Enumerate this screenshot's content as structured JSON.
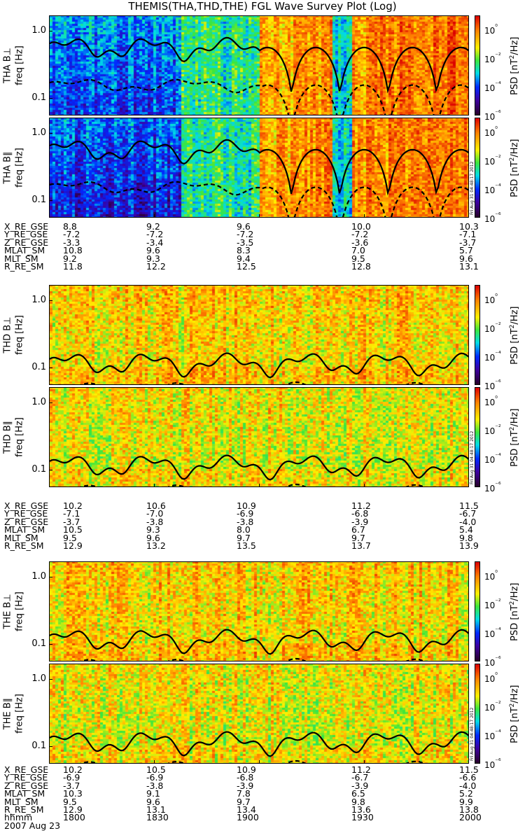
{
  "title": "THEMIS(THA,THD,THE) FGL Wave Survey Plot (Log)",
  "colorbar": {
    "label": "PSD [nT²/Hz]",
    "ticks": [
      "10⁰",
      "10⁻²",
      "10⁻⁴",
      "10⁻⁶"
    ]
  },
  "freq_ticks": [
    "1.0",
    "0.1"
  ],
  "stamp": "Fri Aug 31 04:48:17 2012",
  "panels": [
    {
      "id": "tha-bperp",
      "label": "THA B⊥",
      "freq_label": "freq [Hz]",
      "profile": "quiet-then-active",
      "curves": [
        "solid",
        "dashed"
      ]
    },
    {
      "id": "tha-bpar",
      "label": "THA B∥",
      "freq_label": "freq [Hz]",
      "profile": "quiet-then-active",
      "curves": [
        "solid",
        "dashed"
      ]
    },
    {
      "id": "thd-bperp",
      "label": "THD B⊥",
      "freq_label": "freq [Hz]",
      "profile": "active",
      "curves": [
        "solid",
        "dashed"
      ]
    },
    {
      "id": "thd-bpar",
      "label": "THD B∥",
      "freq_label": "freq [Hz]",
      "profile": "active",
      "curves": [
        "solid",
        "dashed"
      ]
    },
    {
      "id": "the-bperp",
      "label": "THE B⊥",
      "freq_label": "freq [Hz]",
      "profile": "active",
      "curves": [
        "solid",
        "dashed"
      ]
    },
    {
      "id": "the-bpar",
      "label": "THE B∥",
      "freq_label": "freq [Hz]",
      "profile": "active",
      "curves": [
        "solid",
        "dashed"
      ]
    }
  ],
  "ephemeris": [
    {
      "probe": "THA",
      "rows": [
        {
          "name": "X_RE_GSE",
          "values": [
            "8.8",
            "9.2",
            "9.6",
            "10.0",
            "10.3"
          ]
        },
        {
          "name": "Y_RE_GSE",
          "values": [
            "-7.2",
            "-7.2",
            "-7.2",
            "-7.2",
            "-7.1"
          ]
        },
        {
          "name": "Z_RE_GSE",
          "values": [
            "-3.3",
            "-3.4",
            "-3.5",
            "-3.6",
            "-3.7"
          ]
        },
        {
          "name": "MLAT_SM",
          "values": [
            "10.8",
            "9.6",
            "8.3",
            "7.0",
            "5.7"
          ]
        },
        {
          "name": "MLT_SM",
          "values": [
            "9.2",
            "9.3",
            "9.4",
            "9.5",
            "9.6"
          ]
        },
        {
          "name": "R_RE_SM",
          "values": [
            "11.8",
            "12.2",
            "12.5",
            "12.8",
            "13.1"
          ]
        }
      ]
    },
    {
      "probe": "THD",
      "rows": [
        {
          "name": "X_RE_GSE",
          "values": [
            "10.2",
            "10.6",
            "10.9",
            "11.2",
            "11.5"
          ]
        },
        {
          "name": "Y_RE_GSE",
          "values": [
            "-7.1",
            "-7.0",
            "-6.9",
            "-6.8",
            "-6.7"
          ]
        },
        {
          "name": "Z_RE_GSE",
          "values": [
            "-3.7",
            "-3.8",
            "-3.8",
            "-3.9",
            "-4.0"
          ]
        },
        {
          "name": "MLAT_SM",
          "values": [
            "10.5",
            "9.3",
            "8.0",
            "6.7",
            "5.4"
          ]
        },
        {
          "name": "MLT_SM",
          "values": [
            "9.5",
            "9.6",
            "9.7",
            "9.7",
            "9.8"
          ]
        },
        {
          "name": "R_RE_SM",
          "values": [
            "12.9",
            "13.2",
            "13.5",
            "13.7",
            "13.9"
          ]
        }
      ]
    },
    {
      "probe": "THE",
      "rows": [
        {
          "name": "X_RE_GSE",
          "values": [
            "10.2",
            "10.5",
            "10.9",
            "11.2",
            "11.5"
          ]
        },
        {
          "name": "Y_RE_GSE",
          "values": [
            "-6.9",
            "-6.9",
            "-6.8",
            "-6.7",
            "-6.6"
          ]
        },
        {
          "name": "Z_RE_GSE",
          "values": [
            "-3.7",
            "-3.8",
            "-3.9",
            "-3.9",
            "-4.0"
          ]
        },
        {
          "name": "MLAT_SM",
          "values": [
            "10.3",
            "9.1",
            "7.8",
            "6.5",
            "5.2"
          ]
        },
        {
          "name": "MLT_SM",
          "values": [
            "9.5",
            "9.6",
            "9.7",
            "9.8",
            "9.9"
          ]
        },
        {
          "name": "R_RE_SM",
          "values": [
            "12.9",
            "13.1",
            "13.4",
            "13.6",
            "13.8"
          ]
        },
        {
          "name": "hhmm",
          "values": [
            "1800",
            "1830",
            "1900",
            "1930",
            "2000"
          ]
        }
      ]
    }
  ],
  "date_label": "2007 Aug 23",
  "chart_data": {
    "type": "heatmap",
    "title": "THEMIS(THA,THD,THE) FGL Wave Survey Plot (Log)",
    "xlabel": "hhmm",
    "x_ticks": [
      "1800",
      "1830",
      "1900",
      "1930",
      "2000"
    ],
    "ylabel": "freq [Hz]",
    "y_scale": "log",
    "ylim": [
      0.055,
      1.7
    ],
    "y_ticks": [
      1.0,
      0.1
    ],
    "colorbar": {
      "label": "PSD [nT²/Hz]",
      "scale": "log",
      "range": [
        1e-06,
        10
      ],
      "ticks": [
        1,
        0.01,
        0.0001,
        1e-06
      ]
    },
    "series": [
      {
        "name": "THA B⊥"
      },
      {
        "name": "THA B∥"
      },
      {
        "name": "THD B⊥"
      },
      {
        "name": "THD B∥"
      },
      {
        "name": "THE B⊥"
      },
      {
        "name": "THE B∥"
      }
    ],
    "grid": false
  }
}
